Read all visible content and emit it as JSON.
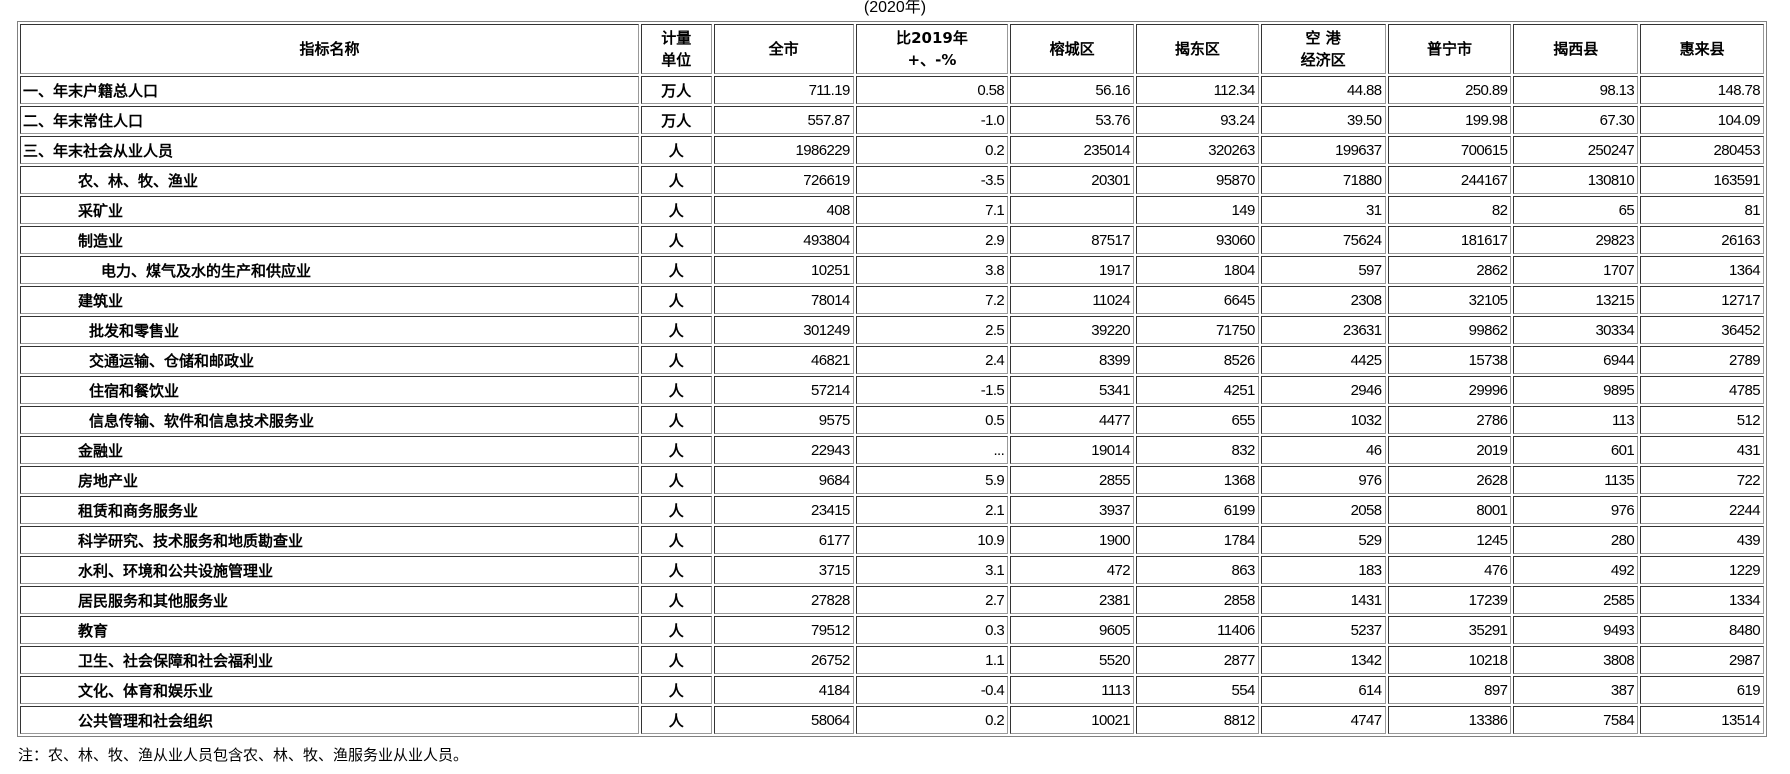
{
  "year_caption": "(2020年)",
  "headers": [
    "指标名称",
    "计量单位",
    "全市",
    "比2019年 +、-%",
    "榕城区",
    "揭东区",
    "空 港 经济区",
    "普宁市",
    "揭西县",
    "惠来县"
  ],
  "header_lines": [
    [
      "指标名称"
    ],
    [
      "计量",
      "单位"
    ],
    [
      "全市"
    ],
    [
      "比2019年",
      "+、-%"
    ],
    [
      "榕城区"
    ],
    [
      "揭东区"
    ],
    [
      "空 港",
      "经济区"
    ],
    [
      "普宁市"
    ],
    [
      "揭西县"
    ],
    [
      "惠来县"
    ]
  ],
  "rows": [
    {
      "name": "一、年末户籍总人口",
      "unit": "万人",
      "values": [
        "711.19",
        "0.58",
        "56.16",
        "112.34",
        "44.88",
        "250.89",
        "98.13",
        "148.78"
      ]
    },
    {
      "name": "二、年末常住人口",
      "unit": "万人",
      "values": [
        "557.87",
        "-1.0",
        "53.76",
        "93.24",
        "39.50",
        "199.98",
        "67.30",
        "104.09"
      ]
    },
    {
      "name": "三、年末社会从业人员",
      "unit": "人",
      "values": [
        "1986229",
        "0.2",
        "235014",
        "320263",
        "199637",
        "700615",
        "250247",
        "280453"
      ]
    },
    {
      "name": "农、林、牧、渔业",
      "unit": "人",
      "values": [
        "726619",
        "-3.5",
        "20301",
        "95870",
        "71880",
        "244167",
        "130810",
        "163591"
      ]
    },
    {
      "name": "采矿业",
      "unit": "人",
      "values": [
        "408",
        "7.1",
        "",
        "149",
        "31",
        "82",
        "65",
        "81"
      ]
    },
    {
      "name": "制造业",
      "unit": "人",
      "values": [
        "493804",
        "2.9",
        "87517",
        "93060",
        "75624",
        "181617",
        "29823",
        "26163"
      ]
    },
    {
      "name": "电力、煤气及水的生产和供应业",
      "unit": "人",
      "values": [
        "10251",
        "3.8",
        "1917",
        "1804",
        "597",
        "2862",
        "1707",
        "1364"
      ]
    },
    {
      "name": "建筑业",
      "unit": "人",
      "values": [
        "78014",
        "7.2",
        "11024",
        "6645",
        "2308",
        "32105",
        "13215",
        "12717"
      ]
    },
    {
      "name": "批发和零售业",
      "unit": "人",
      "values": [
        "301249",
        "2.5",
        "39220",
        "71750",
        "23631",
        "99862",
        "30334",
        "36452"
      ]
    },
    {
      "name": "交通运输、仓储和邮政业",
      "unit": "人",
      "values": [
        "46821",
        "2.4",
        "8399",
        "8526",
        "4425",
        "15738",
        "6944",
        "2789"
      ]
    },
    {
      "name": "住宿和餐饮业",
      "unit": "人",
      "values": [
        "57214",
        "-1.5",
        "5341",
        "4251",
        "2946",
        "29996",
        "9895",
        "4785"
      ]
    },
    {
      "name": "信息传输、软件和信息技术服务业",
      "unit": "人",
      "values": [
        "9575",
        "0.5",
        "4477",
        "655",
        "1032",
        "2786",
        "113",
        "512"
      ]
    },
    {
      "name": "金融业",
      "unit": "人",
      "values": [
        "22943",
        "...",
        "19014",
        "832",
        "46",
        "2019",
        "601",
        "431"
      ]
    },
    {
      "name": "房地产业",
      "unit": "人",
      "values": [
        "9684",
        "5.9",
        "2855",
        "1368",
        "976",
        "2628",
        "1135",
        "722"
      ]
    },
    {
      "name": "租赁和商务服务业",
      "unit": "人",
      "values": [
        "23415",
        "2.1",
        "3937",
        "6199",
        "2058",
        "8001",
        "976",
        "2244"
      ]
    },
    {
      "name": "科学研究、技术服务和地质勘查业",
      "unit": "人",
      "values": [
        "6177",
        "10.9",
        "1900",
        "1784",
        "529",
        "1245",
        "280",
        "439"
      ]
    },
    {
      "name": "水利、环境和公共设施管理业",
      "unit": "人",
      "values": [
        "3715",
        "3.1",
        "472",
        "863",
        "183",
        "476",
        "492",
        "1229"
      ]
    },
    {
      "name": "居民服务和其他服务业",
      "unit": "人",
      "values": [
        "27828",
        "2.7",
        "2381",
        "2858",
        "1431",
        "17239",
        "2585",
        "1334"
      ]
    },
    {
      "name": "教育",
      "unit": "人",
      "values": [
        "79512",
        "0.3",
        "9605",
        "11406",
        "5237",
        "35291",
        "9493",
        "8480"
      ]
    },
    {
      "name": "卫生、社会保障和社会福利业",
      "unit": "人",
      "values": [
        "26752",
        "1.1",
        "5520",
        "2877",
        "1342",
        "10218",
        "3808",
        "2987"
      ]
    },
    {
      "name": "文化、体育和娱乐业",
      "unit": "人",
      "values": [
        "4184",
        "-0.4",
        "1113",
        "554",
        "614",
        "897",
        "387",
        "619"
      ]
    },
    {
      "name": "公共管理和社会组织",
      "unit": "人",
      "values": [
        "58064",
        "0.2",
        "10021",
        "8812",
        "4747",
        "13386",
        "7584",
        "13514"
      ]
    }
  ],
  "note": "注：农、林、牧、渔从业人员包含农、林、牧、渔服务业从业人员。"
}
